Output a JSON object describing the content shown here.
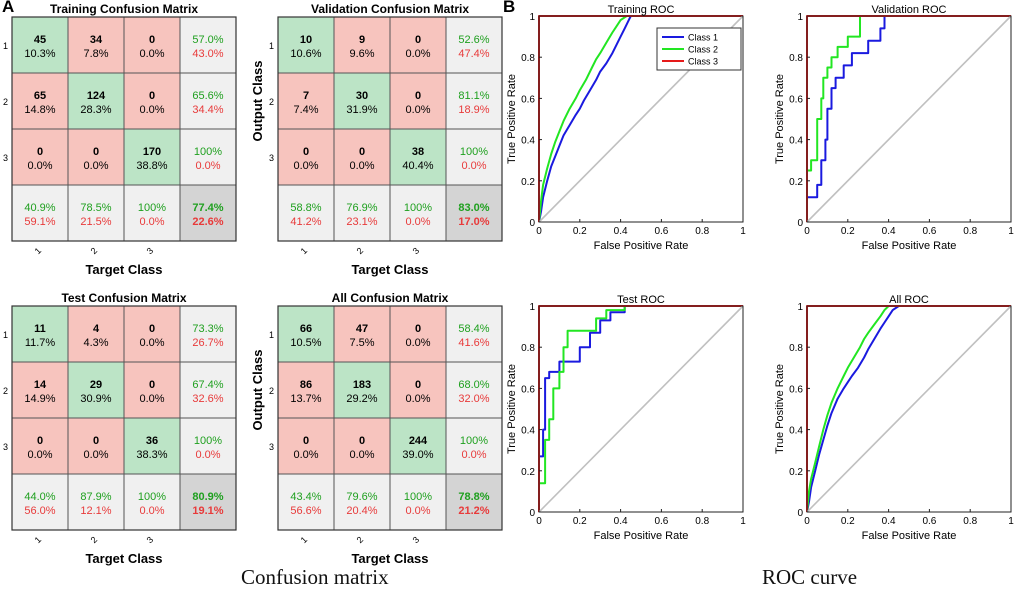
{
  "panels": {
    "a_label": "A",
    "b_label": "B"
  },
  "captions": {
    "left": "Confusion matrix",
    "right": "ROC curve"
  },
  "colors": {
    "correct": "#bce4c6",
    "wrong": "#f7c4be",
    "summary": "#f0f0f0",
    "overall": "#d4d4d4",
    "green_text": "#1fa01f",
    "red_text": "#e83a3a",
    "class1": "#1a1adf",
    "class2": "#22e622",
    "class3": "#e61a1a",
    "diag": "#c0c0c0"
  },
  "confusion": {
    "xlabel": "Target Class",
    "ylabel": "Output Class",
    "class_labels": [
      "1",
      "2",
      "3"
    ],
    "matrices": [
      {
        "title": "Training Confusion Matrix",
        "cells": [
          [
            "45",
            "10.3%",
            "34",
            "7.8%",
            "0",
            "0.0%"
          ],
          [
            "65",
            "14.8%",
            "124",
            "28.3%",
            "0",
            "0.0%"
          ],
          [
            "0",
            "0.0%",
            "0",
            "0.0%",
            "170",
            "38.8%"
          ]
        ],
        "row_summary": [
          [
            "57.0%",
            "43.0%"
          ],
          [
            "65.6%",
            "34.4%"
          ],
          [
            "100%",
            "0.0%"
          ]
        ],
        "col_summary": [
          [
            "40.9%",
            "59.1%"
          ],
          [
            "78.5%",
            "21.5%"
          ],
          [
            "100%",
            "0.0%"
          ]
        ],
        "overall": [
          "77.4%",
          "22.6%"
        ]
      },
      {
        "title": "Validation Confusion Matrix",
        "cells": [
          [
            "10",
            "10.6%",
            "9",
            "9.6%",
            "0",
            "0.0%"
          ],
          [
            "7",
            "7.4%",
            "30",
            "31.9%",
            "0",
            "0.0%"
          ],
          [
            "0",
            "0.0%",
            "0",
            "0.0%",
            "38",
            "40.4%"
          ]
        ],
        "row_summary": [
          [
            "52.6%",
            "47.4%"
          ],
          [
            "81.1%",
            "18.9%"
          ],
          [
            "100%",
            "0.0%"
          ]
        ],
        "col_summary": [
          [
            "58.8%",
            "41.2%"
          ],
          [
            "76.9%",
            "23.1%"
          ],
          [
            "100%",
            "0.0%"
          ]
        ],
        "overall": [
          "83.0%",
          "17.0%"
        ]
      },
      {
        "title": "Test Confusion Matrix",
        "cells": [
          [
            "11",
            "11.7%",
            "4",
            "4.3%",
            "0",
            "0.0%"
          ],
          [
            "14",
            "14.9%",
            "29",
            "30.9%",
            "0",
            "0.0%"
          ],
          [
            "0",
            "0.0%",
            "0",
            "0.0%",
            "36",
            "38.3%"
          ]
        ],
        "row_summary": [
          [
            "73.3%",
            "26.7%"
          ],
          [
            "67.4%",
            "32.6%"
          ],
          [
            "100%",
            "0.0%"
          ]
        ],
        "col_summary": [
          [
            "44.0%",
            "56.0%"
          ],
          [
            "87.9%",
            "12.1%"
          ],
          [
            "100%",
            "0.0%"
          ]
        ],
        "overall": [
          "80.9%",
          "19.1%"
        ]
      },
      {
        "title": "All Confusion Matrix",
        "cells": [
          [
            "66",
            "10.5%",
            "47",
            "7.5%",
            "0",
            "0.0%"
          ],
          [
            "86",
            "13.7%",
            "183",
            "29.2%",
            "0",
            "0.0%"
          ],
          [
            "0",
            "0.0%",
            "0",
            "0.0%",
            "244",
            "39.0%"
          ]
        ],
        "row_summary": [
          [
            "58.4%",
            "41.6%"
          ],
          [
            "68.0%",
            "32.0%"
          ],
          [
            "100%",
            "0.0%"
          ]
        ],
        "col_summary": [
          [
            "43.4%",
            "56.6%"
          ],
          [
            "79.6%",
            "20.4%"
          ],
          [
            "100%",
            "0.0%"
          ]
        ],
        "overall": [
          "78.8%",
          "21.2%"
        ]
      }
    ]
  },
  "chart_data": [
    {
      "type": "line",
      "title": "Training ROC",
      "xlabel": "False Positive Rate",
      "ylabel": "True Positive Rate",
      "xlim": [
        0,
        1
      ],
      "ylim": [
        0,
        1
      ],
      "xticks": [
        "0",
        "0.2",
        "0.4",
        "0.6",
        "0.8",
        "1"
      ],
      "yticks": [
        "0",
        "0.2",
        "0.4",
        "0.6",
        "0.8",
        "1"
      ],
      "legend": {
        "position": "top-right",
        "entries": [
          "Class 1",
          "Class 2",
          "Class 3"
        ]
      },
      "series": [
        {
          "name": "Class 1",
          "x": [
            0,
            0.01,
            0.02,
            0.04,
            0.06,
            0.08,
            0.1,
            0.12,
            0.15,
            0.18,
            0.2,
            0.22,
            0.25,
            0.28,
            0.3,
            0.33,
            0.36,
            0.38,
            0.4,
            0.42,
            0.44,
            0.45
          ],
          "y": [
            0,
            0.05,
            0.12,
            0.2,
            0.27,
            0.32,
            0.37,
            0.42,
            0.47,
            0.52,
            0.55,
            0.59,
            0.64,
            0.69,
            0.73,
            0.77,
            0.82,
            0.86,
            0.9,
            0.94,
            0.98,
            1
          ]
        },
        {
          "name": "Class 2",
          "x": [
            0,
            0.01,
            0.02,
            0.04,
            0.06,
            0.08,
            0.1,
            0.12,
            0.15,
            0.18,
            0.2,
            0.23,
            0.26,
            0.28,
            0.3,
            0.33,
            0.36,
            0.38,
            0.4,
            0.43
          ],
          "y": [
            0,
            0.1,
            0.18,
            0.26,
            0.33,
            0.39,
            0.44,
            0.49,
            0.55,
            0.6,
            0.64,
            0.69,
            0.75,
            0.79,
            0.82,
            0.87,
            0.92,
            0.95,
            0.98,
            1
          ]
        },
        {
          "name": "Class 3",
          "x": [
            0,
            0,
            1
          ],
          "y": [
            0,
            1,
            1
          ]
        },
        {
          "name": "diagonal",
          "x": [
            0,
            1
          ],
          "y": [
            0,
            1
          ]
        }
      ]
    },
    {
      "type": "line",
      "title": "Validation ROC",
      "xlabel": "False Positive Rate",
      "ylabel": "True Positive Rate",
      "xlim": [
        0,
        1
      ],
      "ylim": [
        0,
        1
      ],
      "xticks": [
        "0",
        "0.2",
        "0.4",
        "0.6",
        "0.8",
        "1"
      ],
      "yticks": [
        "0",
        "0.2",
        "0.4",
        "0.6",
        "0.8",
        "1"
      ],
      "series": [
        {
          "name": "Class 1",
          "x": [
            0,
            0,
            0.05,
            0.05,
            0.07,
            0.07,
            0.09,
            0.09,
            0.1,
            0.1,
            0.12,
            0.12,
            0.14,
            0.14,
            0.18,
            0.18,
            0.22,
            0.22,
            0.3,
            0.3,
            0.36,
            0.36,
            0.38,
            0.38
          ],
          "y": [
            0,
            0.12,
            0.12,
            0.18,
            0.18,
            0.3,
            0.3,
            0.4,
            0.4,
            0.55,
            0.55,
            0.65,
            0.65,
            0.7,
            0.7,
            0.76,
            0.76,
            0.82,
            0.82,
            0.88,
            0.88,
            0.94,
            0.94,
            1
          ]
        },
        {
          "name": "Class 2",
          "x": [
            0,
            0,
            0.02,
            0.02,
            0.05,
            0.05,
            0.07,
            0.07,
            0.08,
            0.08,
            0.1,
            0.1,
            0.12,
            0.12,
            0.15,
            0.15,
            0.2,
            0.2,
            0.26,
            0.26
          ],
          "y": [
            0,
            0.25,
            0.25,
            0.3,
            0.3,
            0.5,
            0.5,
            0.6,
            0.6,
            0.7,
            0.7,
            0.75,
            0.75,
            0.8,
            0.8,
            0.85,
            0.85,
            0.9,
            0.9,
            1
          ]
        },
        {
          "name": "Class 3",
          "x": [
            0,
            0,
            1
          ],
          "y": [
            0,
            1,
            1
          ]
        },
        {
          "name": "diagonal",
          "x": [
            0,
            1
          ],
          "y": [
            0,
            1
          ]
        }
      ]
    },
    {
      "type": "line",
      "title": "Test ROC",
      "xlabel": "False Positive Rate",
      "ylabel": "True Positive Rate",
      "xlim": [
        0,
        1
      ],
      "ylim": [
        0,
        1
      ],
      "xticks": [
        "0",
        "0.2",
        "0.4",
        "0.6",
        "0.8",
        "1"
      ],
      "yticks": [
        "0",
        "0.2",
        "0.4",
        "0.6",
        "0.8",
        "1"
      ],
      "series": [
        {
          "name": "Class 1",
          "x": [
            0,
            0,
            0.02,
            0.02,
            0.03,
            0.03,
            0.05,
            0.05,
            0.1,
            0.1,
            0.2,
            0.2,
            0.25,
            0.25,
            0.3,
            0.3,
            0.35,
            0.35,
            0.42,
            0.42
          ],
          "y": [
            0,
            0.27,
            0.27,
            0.4,
            0.4,
            0.65,
            0.65,
            0.68,
            0.68,
            0.73,
            0.73,
            0.8,
            0.8,
            0.87,
            0.87,
            0.93,
            0.93,
            0.97,
            0.97,
            1
          ]
        },
        {
          "name": "Class 2",
          "x": [
            0,
            0,
            0.03,
            0.03,
            0.05,
            0.05,
            0.07,
            0.07,
            0.1,
            0.1,
            0.12,
            0.12,
            0.14,
            0.14,
            0.28,
            0.28,
            0.33,
            0.33,
            0.42,
            0.42
          ],
          "y": [
            0,
            0.14,
            0.14,
            0.35,
            0.35,
            0.45,
            0.45,
            0.6,
            0.6,
            0.68,
            0.68,
            0.8,
            0.8,
            0.88,
            0.88,
            0.94,
            0.94,
            0.98,
            0.98,
            1
          ]
        },
        {
          "name": "Class 3",
          "x": [
            0,
            0,
            1
          ],
          "y": [
            0,
            1,
            1
          ]
        },
        {
          "name": "diagonal",
          "x": [
            0,
            1
          ],
          "y": [
            0,
            1
          ]
        }
      ]
    },
    {
      "type": "line",
      "title": "All ROC",
      "xlabel": "False Positive Rate",
      "ylabel": "True Positive Rate",
      "xlim": [
        0,
        1
      ],
      "ylim": [
        0,
        1
      ],
      "xticks": [
        "0",
        "0.2",
        "0.4",
        "0.6",
        "0.8",
        "1"
      ],
      "yticks": [
        "0",
        "0.2",
        "0.4",
        "0.6",
        "0.8",
        "1"
      ],
      "series": [
        {
          "name": "Class 1",
          "x": [
            0,
            0.01,
            0.02,
            0.04,
            0.06,
            0.08,
            0.1,
            0.12,
            0.15,
            0.18,
            0.2,
            0.22,
            0.25,
            0.28,
            0.3,
            0.33,
            0.36,
            0.38,
            0.4,
            0.42,
            0.45
          ],
          "y": [
            0,
            0.05,
            0.12,
            0.2,
            0.28,
            0.35,
            0.42,
            0.48,
            0.55,
            0.6,
            0.63,
            0.66,
            0.7,
            0.75,
            0.79,
            0.84,
            0.89,
            0.92,
            0.95,
            0.98,
            1
          ]
        },
        {
          "name": "Class 2",
          "x": [
            0,
            0.01,
            0.02,
            0.04,
            0.06,
            0.08,
            0.1,
            0.12,
            0.15,
            0.18,
            0.2,
            0.23,
            0.26,
            0.28,
            0.3,
            0.33,
            0.36,
            0.38,
            0.4
          ],
          "y": [
            0,
            0.1,
            0.16,
            0.24,
            0.32,
            0.4,
            0.47,
            0.53,
            0.6,
            0.66,
            0.7,
            0.75,
            0.8,
            0.84,
            0.87,
            0.91,
            0.95,
            0.98,
            1
          ]
        },
        {
          "name": "Class 3",
          "x": [
            0,
            0,
            1
          ],
          "y": [
            0,
            1,
            1
          ]
        },
        {
          "name": "diagonal",
          "x": [
            0,
            1
          ],
          "y": [
            0,
            1
          ]
        }
      ]
    }
  ]
}
